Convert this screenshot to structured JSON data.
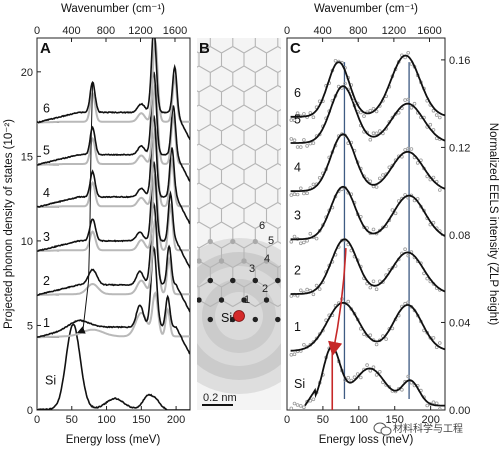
{
  "colors": {
    "dark_trace": "#111111",
    "gray_trace": "#b9b9b9",
    "red_arrow": "#c62828",
    "vline_blue": "#3e5a82",
    "lattice": "#b5b5b5",
    "dot_dark": "#222222",
    "dot_light": "#aaaaaa",
    "si_atom": "#d42a2a"
  },
  "watermark": {
    "text": "材料科学与工程",
    "icon": "wechat-icon"
  },
  "chart_data": [
    {
      "panel": "A",
      "type": "line",
      "xlabel": "Energy loss (meV)",
      "ylabel": "Projected phonon density of states (10⁻²)",
      "top_xlabel": "Wavenumber (cm⁻¹)",
      "xlim": [
        0,
        220
      ],
      "ylim": [
        0,
        22
      ],
      "x_ticks": [
        0,
        50,
        100,
        150,
        200
      ],
      "y_ticks": [
        0,
        5,
        10,
        15,
        20
      ],
      "top_ticks": [
        0,
        400,
        800,
        1200,
        1600
      ],
      "series": [
        {
          "label": "Si",
          "offset": 0,
          "peaks": [
            [
              52,
              5.0,
              10
            ],
            [
              112,
              0.6,
              12
            ],
            [
              160,
              0.8,
              7
            ],
            [
              172,
              0.4,
              5
            ]
          ],
          "gray_peaks": []
        },
        {
          "label": "1",
          "offset": 4.3,
          "peaks": [
            [
              60,
              0.4,
              15
            ],
            [
              148,
              1.3,
              5
            ],
            [
              168,
              4.7,
              4
            ],
            [
              188,
              1.8,
              3
            ]
          ],
          "gray_peaks": [
            [
              80,
              0.4,
              15
            ],
            [
              150,
              1.4,
              8
            ],
            [
              170,
              2.5,
              4
            ],
            [
              188,
              1.6,
              3
            ]
          ]
        },
        {
          "label": "2",
          "offset": 6.8,
          "peaks": [
            [
              80,
              0.9,
              6
            ],
            [
              148,
              0.8,
              5
            ],
            [
              168,
              4.8,
              4
            ],
            [
              190,
              2.3,
              3
            ]
          ],
          "gray_peaks": [
            [
              80,
              0.6,
              8
            ],
            [
              150,
              0.8,
              6
            ],
            [
              170,
              4.4,
              4
            ],
            [
              190,
              2.1,
              3
            ]
          ]
        },
        {
          "label": "3",
          "offset": 9.4,
          "peaks": [
            [
              80,
              1.3,
              4
            ],
            [
              148,
              0.5,
              5
            ],
            [
              168,
              4.7,
              3.5
            ],
            [
              192,
              2.8,
              3
            ]
          ],
          "gray_peaks": [
            [
              80,
              1.1,
              4
            ],
            [
              150,
              0.6,
              5
            ],
            [
              170,
              4.5,
              3.5
            ],
            [
              192,
              2.6,
              3
            ]
          ]
        },
        {
          "label": "4",
          "offset": 12.0,
          "peaks": [
            [
              80,
              1.5,
              3.5
            ],
            [
              150,
              0.5,
              5
            ],
            [
              168,
              4.8,
              3.5
            ],
            [
              194,
              2.9,
              3
            ]
          ],
          "gray_peaks": [
            [
              80,
              1.4,
              3.5
            ],
            [
              150,
              0.5,
              5
            ],
            [
              170,
              4.6,
              3.5
            ],
            [
              194,
              2.7,
              3
            ]
          ]
        },
        {
          "label": "5",
          "offset": 14.5,
          "peaks": [
            [
              80,
              1.6,
              3.5
            ],
            [
              150,
              0.5,
              5
            ],
            [
              168,
              4.9,
              3.5
            ],
            [
              196,
              2.9,
              3
            ]
          ],
          "gray_peaks": [
            [
              80,
              1.5,
              3.5
            ],
            [
              150,
              0.5,
              5
            ],
            [
              170,
              4.7,
              3.5
            ],
            [
              196,
              2.8,
              3
            ]
          ]
        },
        {
          "label": "6",
          "offset": 17.0,
          "peaks": [
            [
              80,
              1.8,
              3.5
            ],
            [
              150,
              0.5,
              5
            ],
            [
              168,
              4.9,
              3.5
            ],
            [
              198,
              2.7,
              3
            ]
          ],
          "gray_peaks": [
            [
              80,
              1.7,
              3.5
            ],
            [
              150,
              0.5,
              5
            ],
            [
              170,
              4.8,
              3.5
            ],
            [
              198,
              2.6,
              3
            ]
          ]
        }
      ],
      "peak_tracking_line": {
        "points": [
          [
            80,
            19.4
          ],
          [
            78,
            16.1
          ],
          [
            77,
            13.5
          ],
          [
            76,
            10.7
          ],
          [
            74,
            7.6
          ],
          [
            66,
            4.7
          ]
        ],
        "arrow_to": [
          60,
          4.6
        ]
      }
    },
    {
      "panel": "B",
      "type": "diagram",
      "scale_bar_label": "0.2 nm",
      "center_atom_label": "Si",
      "ring_labels": [
        "1",
        "2",
        "3",
        "4",
        "5",
        "6"
      ],
      "hexagon_cols": 6,
      "hexagon_rows": 14
    },
    {
      "panel": "C",
      "type": "line",
      "xlabel": "Energy loss (meV)",
      "ylabel": "Normalized EELS intensity (ZLP height)",
      "top_xlabel": "Wavenumber (cm⁻¹)",
      "xlim": [
        0,
        220
      ],
      "ylim": [
        0,
        0.17
      ],
      "x_ticks": [
        0,
        50,
        100,
        150,
        200
      ],
      "y_tick_labels": [
        "0.00",
        "0.04",
        "0.08",
        "0.12",
        "0.16"
      ],
      "y_ticks": [
        0,
        0.04,
        0.08,
        0.12,
        0.16
      ],
      "top_ticks": [
        0,
        400,
        800,
        1200,
        1600
      ],
      "vlines": [
        80,
        170
      ],
      "series": [
        {
          "label": "Si",
          "offset": 0.002,
          "peaks": [
            [
              62,
              0.026,
              12
            ],
            [
              115,
              0.017,
              22
            ],
            [
              172,
              0.011,
              12
            ]
          ]
        },
        {
          "label": "1",
          "offset": 0.027,
          "peaks": [
            [
              78,
              0.022,
              22
            ],
            [
              168,
              0.021,
              20
            ]
          ]
        },
        {
          "label": "2",
          "offset": 0.053,
          "peaks": [
            [
              80,
              0.025,
              18
            ],
            [
              168,
              0.019,
              22
            ]
          ]
        },
        {
          "label": "3",
          "offset": 0.078,
          "peaks": [
            [
              78,
              0.024,
              17
            ],
            [
              170,
              0.02,
              22
            ]
          ]
        },
        {
          "label": "4",
          "offset": 0.1,
          "peaks": [
            [
              78,
              0.026,
              17
            ],
            [
              168,
              0.018,
              22
            ]
          ]
        },
        {
          "label": "5",
          "offset": 0.122,
          "peaks": [
            [
              78,
              0.026,
              17
            ],
            [
              168,
              0.018,
              22
            ]
          ]
        },
        {
          "label": "6",
          "offset": 0.134,
          "peaks": [
            [
              72,
              0.025,
              15
            ],
            [
              165,
              0.028,
              20
            ]
          ]
        }
      ],
      "red_arrow": {
        "from": [
          82,
          0.074
        ],
        "to": [
          64,
          0.026
        ]
      },
      "red_line": {
        "x": 63,
        "y_range": [
          0,
          0.026
        ]
      }
    }
  ]
}
